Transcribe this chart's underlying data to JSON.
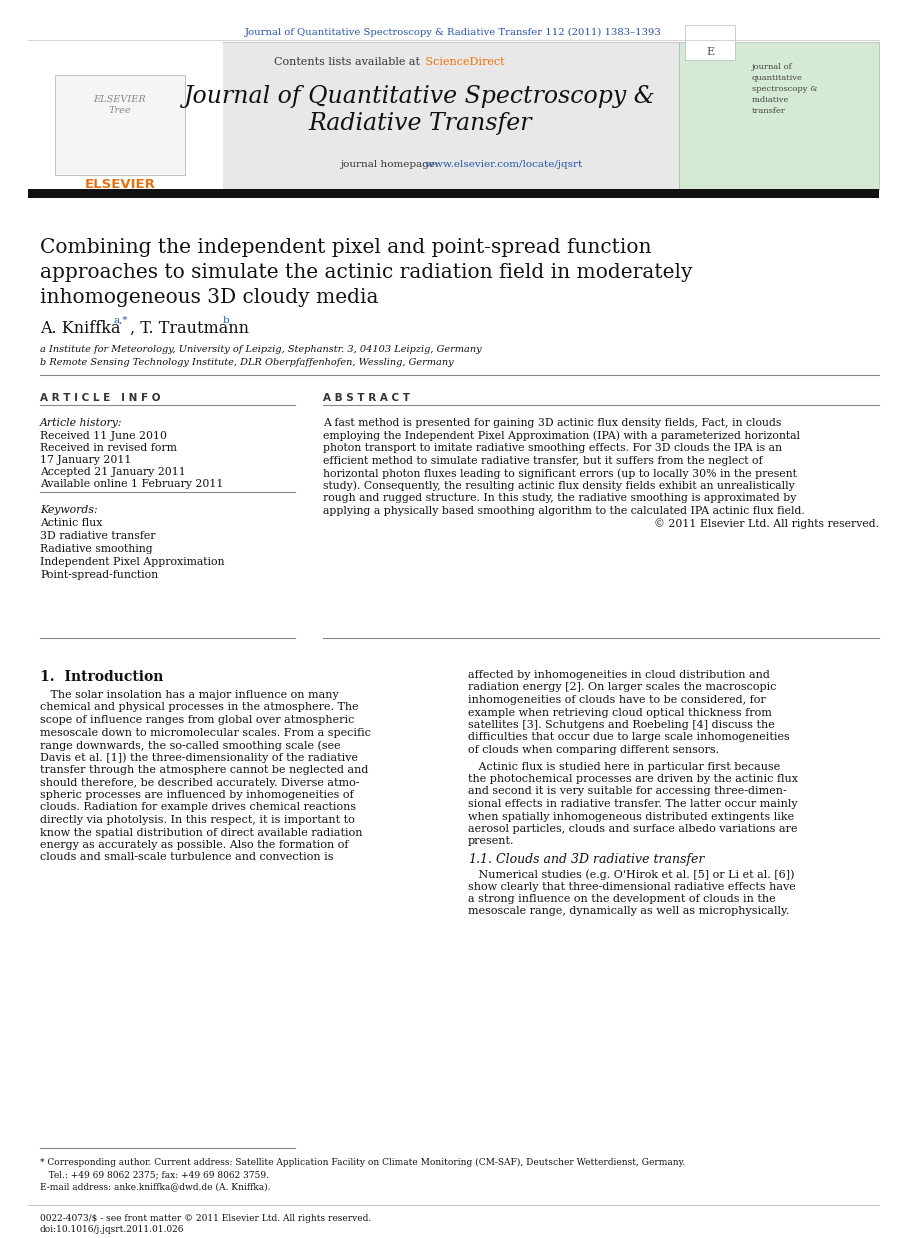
{
  "page_bg": "#ffffff",
  "top_journal_ref": "Journal of Quantitative Spectroscopy & Radiative Transfer 112 (2011) 1383–1393",
  "top_journal_ref_color": "#2255aa",
  "header_bg": "#e8e8e8",
  "header_contents": "Contents lists available at",
  "header_sciencedirect": "ScienceDirect",
  "header_sciencedirect_color": "#f07000",
  "journal_title_line1": "Journal of Quantitative Spectroscopy &",
  "journal_title_line2": "Radiative Transfer",
  "journal_homepage_label": "journal homepage:",
  "journal_homepage_url": "www.elsevier.com/locate/jqsrt",
  "journal_homepage_url_color": "#2255aa",
  "thick_bar_color": "#111111",
  "paper_title": "Combining the independent pixel and point-spread function\napproaches to simulate the actinic radiation field in moderately\ninhomogeneous 3D cloudy media",
  "authors": "A. Kniffka",
  "author_sup_a": "a,*",
  "author2": ", T. Trautmann",
  "author2_sup": "b",
  "affil_a": "a Institute for Meteorology, University of Leipzig, Stephanstr. 3, 04103 Leipzig, Germany",
  "affil_b": "b Remote Sensing Technology Institute, DLR Oberpfaffenhofen, Wessling, Germany",
  "article_info_header": "A R T I C L E   I N F O",
  "abstract_header": "A B S T R A C T",
  "article_history_label": "Article history:",
  "received1": "Received 11 June 2010",
  "received2": "Received in revised form",
  "date2": "17 January 2011",
  "accepted": "Accepted 21 January 2011",
  "available": "Available online 1 February 2011",
  "keywords_label": "Keywords:",
  "keywords": [
    "Actinic flux",
    "3D radiative transfer",
    "Radiative smoothing",
    "Independent Pixel Approximation",
    "Point-spread-function"
  ],
  "abstract_text": "A fast method is presented for gaining 3D actinic flux density fields, Fact, in clouds\nemploying the Independent Pixel Approximation (IPA) with a parameterized horizontal\nphoton transport to imitate radiative smoothing effects. For 3D clouds the IPA is an\nefficient method to simulate radiative transfer, but it suffers from the neglect of\nhorizontal photon fluxes leading to significant errors (up to locally 30% in the present\nstudy). Consequently, the resulting actinic flux density fields exhibit an unrealistically\nrough and rugged structure. In this study, the radiative smoothing is approximated by\napplying a physically based smoothing algorithm to the calculated IPA actinic flux field.\n© 2011 Elsevier Ltd. All rights reserved.",
  "section1_num": "1.",
  "section1_title": "Introduction",
  "intro_col1_p1": "   The solar insolation has a major influence on many\nchemical and physical processes in the atmosphere. The\nscope of influence ranges from global over atmospheric\nmesoscale down to micromolecular scales. From a specific\nrange downwards, the so-called smoothing scale (see\nDavis et al. [1]) the three-dimensionality of the radiative\ntransfer through the atmosphere cannot be neglected and\nshould therefore, be described accurately. Diverse atmo-\nspheric processes are influenced by inhomogeneities of\nclouds. Radiation for example drives chemical reactions\ndirectly via photolysis. In this respect, it is important to\nknow the spatial distribution of direct available radiation\nenergy as accurately as possible. Also the formation of\nclouds and small-scale turbulence and convection is",
  "intro_col2_p1": "affected by inhomogeneities in cloud distribution and\nradiation energy [2]. On larger scales the macroscopic\ninhomogeneities of clouds have to be considered, for\nexample when retrieving cloud optical thickness from\nsatellites [3]. Schutgens and Roebeling [4] discuss the\ndifficulties that occur due to large scale inhomogeneities\nof clouds when comparing different sensors.",
  "intro_col2_p2": "   Actinic flux is studied here in particular first because\nthe photochemical processes are driven by the actinic flux\nand second it is very suitable for accessing three-dimen-\nsional effects in radiative transfer. The latter occur mainly\nwhen spatially inhomogeneous distributed extingents like\naerosol particles, clouds and surface albedo variations are\npresent.",
  "subsection1_1_num": "1.1.",
  "subsection1_1_title": "  Clouds and 3D radiative transfer",
  "subsec_p1": "   Numerical studies (e.g. O'Hirok et al. [5] or Li et al. [6])\nshow clearly that three-dimensional radiative effects have\na strong influence on the development of clouds in the\nmesoscale range, dynamically as well as microphysically.",
  "footnote_star": "* Corresponding author. Current address: Satellite Application Facility on Climate Monitoring (CM-SAF), Deutscher Wetterdienst, Germany.",
  "footnote_tel": "   Tel.: +49 69 8062 2375; fax: +49 69 8062 3759.",
  "footnote_email": "E-mail address: anke.kniffka@dwd.de (A. Kniffka).",
  "bottom_issn": "0022-4073/$ - see front matter © 2011 Elsevier Ltd. All rights reserved.",
  "bottom_doi": "doi:10.1016/j.jqsrt.2011.01.026",
  "right_box_bg": "#d4ead4",
  "right_box_text_color": "#444444",
  "elsevier_color": "#e87010"
}
